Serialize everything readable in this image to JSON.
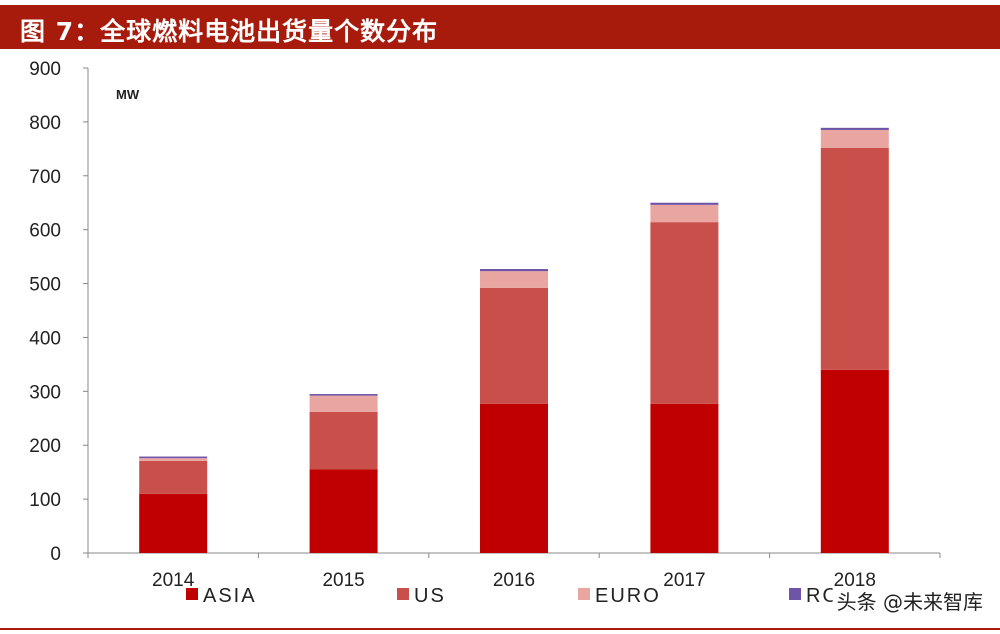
{
  "title": "图 7：全球燃料电池出货量个数分布",
  "watermark": "头条 @未来智库",
  "colors": {
    "title_bg": "#a61b0b",
    "asia": "#c00000",
    "us": "#c9504a",
    "euro": "#e9a5a0",
    "roc": "#6f55a8"
  },
  "chart_data": {
    "type": "bar",
    "stacked": true,
    "unit_label": "MW",
    "categories": [
      "2014",
      "2015",
      "2016",
      "2017",
      "2018"
    ],
    "ylim": [
      0,
      900
    ],
    "yticks": [
      0,
      100,
      200,
      300,
      400,
      500,
      600,
      700,
      800,
      900
    ],
    "series": [
      {
        "name": "ASIA",
        "values": [
          110,
          155,
          277,
          277,
          340
        ]
      },
      {
        "name": "US",
        "values": [
          61,
          107,
          215,
          337,
          412
        ]
      },
      {
        "name": "EURO",
        "values": [
          5,
          30,
          31,
          32,
          33
        ]
      },
      {
        "name": "ROC",
        "values": [
          3,
          3,
          4,
          4,
          4
        ]
      }
    ],
    "legend_position": "bottom"
  }
}
